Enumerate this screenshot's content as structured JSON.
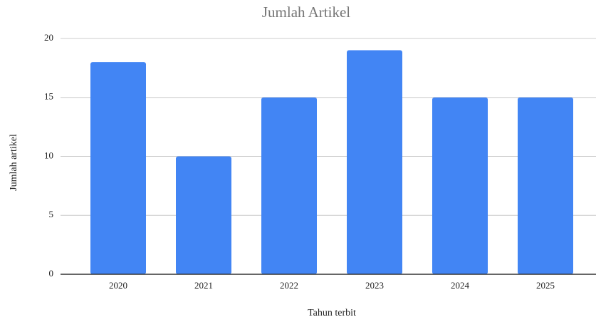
{
  "chart_data": {
    "type": "bar",
    "title": "Jumlah Artikel",
    "x_label": "Tahun terbit",
    "y_label": "Jumlah artikel",
    "categories": [
      "2020",
      "2021",
      "2022",
      "2023",
      "2024",
      "2025"
    ],
    "values": [
      18,
      10,
      15,
      19,
      15,
      15
    ],
    "color": "#4285f4",
    "ylim": [
      0,
      20
    ],
    "yticks": [
      0,
      5,
      10,
      15,
      20
    ],
    "grid": true
  }
}
